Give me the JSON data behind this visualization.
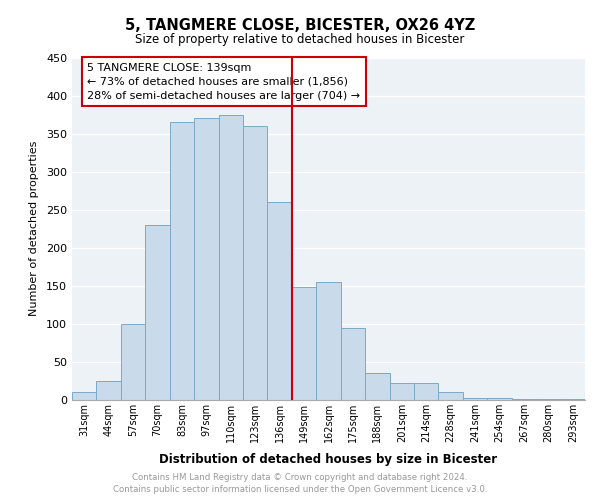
{
  "title": "5, TANGMERE CLOSE, BICESTER, OX26 4YZ",
  "subtitle": "Size of property relative to detached houses in Bicester",
  "xlabel": "Distribution of detached houses by size in Bicester",
  "ylabel": "Number of detached properties",
  "footnote1": "Contains HM Land Registry data © Crown copyright and database right 2024.",
  "footnote2": "Contains public sector information licensed under the Open Government Licence v3.0.",
  "bar_labels": [
    "31sqm",
    "44sqm",
    "57sqm",
    "70sqm",
    "83sqm",
    "97sqm",
    "110sqm",
    "123sqm",
    "136sqm",
    "149sqm",
    "162sqm",
    "175sqm",
    "188sqm",
    "201sqm",
    "214sqm",
    "228sqm",
    "241sqm",
    "254sqm",
    "267sqm",
    "280sqm",
    "293sqm"
  ],
  "bar_values": [
    10,
    25,
    100,
    230,
    365,
    370,
    375,
    360,
    260,
    148,
    155,
    95,
    35,
    22,
    22,
    10,
    2,
    3,
    1,
    1,
    1
  ],
  "bar_color": "#c9daea",
  "bar_edge_color": "#7aaac8",
  "marker_label_index": 8,
  "marker_line_color": "#cc0000",
  "annotation_title": "5 TANGMERE CLOSE: 139sqm",
  "annotation_line1": "← 73% of detached houses are smaller (1,856)",
  "annotation_line2": "28% of semi-detached houses are larger (704) →",
  "annotation_box_color": "#cc0000",
  "ylim": [
    0,
    450
  ],
  "yticks": [
    0,
    50,
    100,
    150,
    200,
    250,
    300,
    350,
    400,
    450
  ],
  "background_color": "#edf2f7"
}
